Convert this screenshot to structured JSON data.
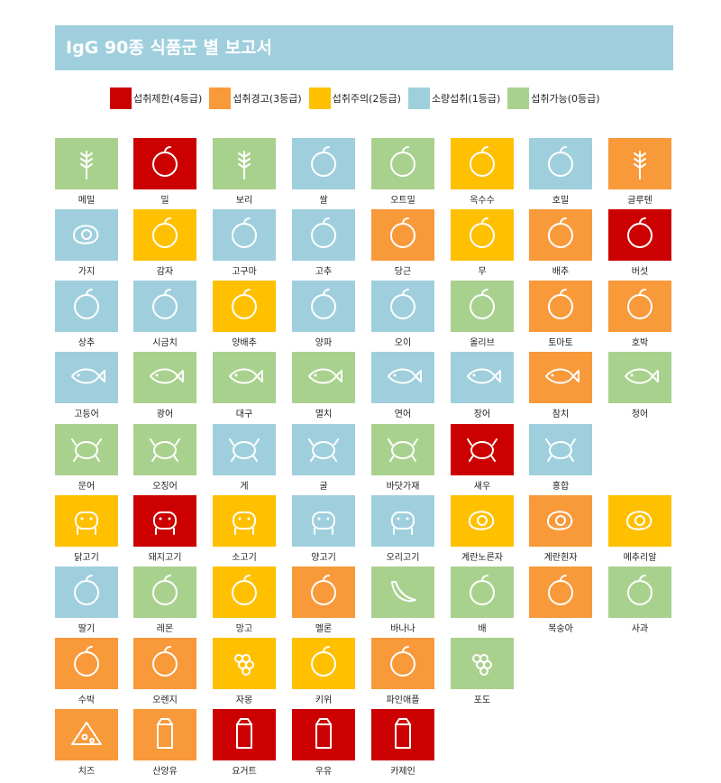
{
  "title": "IgG 90종 식품군 별 보고서",
  "legend": [
    {
      "label": "섭취제한(4등급)",
      "color": "#cc0000"
    },
    {
      "label": "섭취경고(3등급)",
      "color": "#f8993a"
    },
    {
      "label": "섭취주의(2등급)",
      "color": "#ffc000"
    },
    {
      "label": "소량섭취(1등급)",
      "color": "#9fcfdd"
    },
    {
      "label": "섭취가능(0등급)",
      "color": "#a9d18e"
    }
  ],
  "colors": {
    "c4": "#cc0000",
    "c3": "#f8993a",
    "c2": "#ffc000",
    "c1": "#9fcfdd",
    "c0": "#a9d18e"
  },
  "items": [
    [
      {
        "label": "메밀",
        "grade": 0,
        "icon": "wheat-icon"
      },
      {
        "label": "밀",
        "grade": 4,
        "icon": "flour-sack-icon"
      },
      {
        "label": "보리",
        "grade": 0,
        "icon": "barley-icon"
      },
      {
        "label": "쌀",
        "grade": 1,
        "icon": "rice-bowl-icon"
      },
      {
        "label": "오트밀",
        "grade": 0,
        "icon": "oat-grains-icon"
      },
      {
        "label": "옥수수",
        "grade": 2,
        "icon": "corn-icon"
      },
      {
        "label": "호밀",
        "grade": 1,
        "icon": "bread-loaf-icon"
      },
      {
        "label": "글루텐",
        "grade": 3,
        "icon": "wheat-bundle-icon"
      }
    ],
    [
      {
        "label": "가지",
        "grade": 1,
        "icon": "eggplant-icon"
      },
      {
        "label": "감자",
        "grade": 2,
        "icon": "potato-icon"
      },
      {
        "label": "고구마",
        "grade": 1,
        "icon": "sweet-potato-icon"
      },
      {
        "label": "고추",
        "grade": 1,
        "icon": "chili-pepper-icon"
      },
      {
        "label": "당근",
        "grade": 3,
        "icon": "carrot-icon"
      },
      {
        "label": "무",
        "grade": 2,
        "icon": "radish-icon"
      },
      {
        "label": "배추",
        "grade": 3,
        "icon": "cabbage-icon"
      },
      {
        "label": "버섯",
        "grade": 4,
        "icon": "mushroom-icon"
      }
    ],
    [
      {
        "label": "상추",
        "grade": 1,
        "icon": "lettuce-icon"
      },
      {
        "label": "시금치",
        "grade": 1,
        "icon": "spinach-icon"
      },
      {
        "label": "양배추",
        "grade": 2,
        "icon": "cabbage-head-icon"
      },
      {
        "label": "양파",
        "grade": 1,
        "icon": "onion-icon"
      },
      {
        "label": "오이",
        "grade": 1,
        "icon": "cucumber-icon"
      },
      {
        "label": "올리브",
        "grade": 0,
        "icon": "olive-icon"
      },
      {
        "label": "토마토",
        "grade": 3,
        "icon": "tomato-icon"
      },
      {
        "label": "호박",
        "grade": 3,
        "icon": "pumpkin-icon"
      }
    ],
    [
      {
        "label": "고등어",
        "grade": 1,
        "icon": "mackerel-icon"
      },
      {
        "label": "광어",
        "grade": 0,
        "icon": "flatfish-icon"
      },
      {
        "label": "대구",
        "grade": 0,
        "icon": "cod-icon"
      },
      {
        "label": "멸치",
        "grade": 0,
        "icon": "anchovy-icon"
      },
      {
        "label": "연어",
        "grade": 1,
        "icon": "salmon-icon"
      },
      {
        "label": "장어",
        "grade": 1,
        "icon": "eel-icon"
      },
      {
        "label": "참치",
        "grade": 3,
        "icon": "tuna-icon"
      },
      {
        "label": "청어",
        "grade": 0,
        "icon": "herring-icon"
      }
    ],
    [
      {
        "label": "문어",
        "grade": 0,
        "icon": "octopus-icon"
      },
      {
        "label": "오징어",
        "grade": 0,
        "icon": "squid-icon"
      },
      {
        "label": "게",
        "grade": 1,
        "icon": "crab-icon"
      },
      {
        "label": "굴",
        "grade": 1,
        "icon": "oyster-icon"
      },
      {
        "label": "바닷가재",
        "grade": 0,
        "icon": "lobster-icon"
      },
      {
        "label": "새우",
        "grade": 4,
        "icon": "shrimp-icon"
      },
      {
        "label": "홍합",
        "grade": 1,
        "icon": "mussel-icon"
      }
    ],
    [
      {
        "label": "닭고기",
        "grade": 2,
        "icon": "chicken-icon"
      },
      {
        "label": "돼지고기",
        "grade": 4,
        "icon": "pig-icon"
      },
      {
        "label": "소고기",
        "grade": 2,
        "icon": "cow-icon"
      },
      {
        "label": "양고기",
        "grade": 1,
        "icon": "sheep-icon"
      },
      {
        "label": "오리고기",
        "grade": 1,
        "icon": "duck-icon"
      },
      {
        "label": "계란노른자",
        "grade": 2,
        "icon": "egg-yolk-icon"
      },
      {
        "label": "계란흰자",
        "grade": 3,
        "icon": "fried-egg-icon"
      },
      {
        "label": "메추리알",
        "grade": 2,
        "icon": "quail-eggs-icon"
      }
    ],
    [
      {
        "label": "딸기",
        "grade": 1,
        "icon": "strawberry-icon"
      },
      {
        "label": "레몬",
        "grade": 0,
        "icon": "lemon-icon"
      },
      {
        "label": "망고",
        "grade": 2,
        "icon": "mango-icon"
      },
      {
        "label": "멜론",
        "grade": 3,
        "icon": "melon-icon"
      },
      {
        "label": "바나나",
        "grade": 0,
        "icon": "banana-icon"
      },
      {
        "label": "배",
        "grade": 0,
        "icon": "pear-icon"
      },
      {
        "label": "복숭아",
        "grade": 3,
        "icon": "peach-icon"
      },
      {
        "label": "사과",
        "grade": 0,
        "icon": "apple-icon"
      }
    ],
    [
      {
        "label": "수박",
        "grade": 3,
        "icon": "watermelon-icon"
      },
      {
        "label": "오렌지",
        "grade": 3,
        "icon": "orange-icon"
      },
      {
        "label": "자몽",
        "grade": 2,
        "icon": "grapefruit-icon"
      },
      {
        "label": "키위",
        "grade": 2,
        "icon": "kiwi-icon"
      },
      {
        "label": "파인애플",
        "grade": 3,
        "icon": "pineapple-icon"
      },
      {
        "label": "포도",
        "grade": 0,
        "icon": "grapes-icon"
      }
    ],
    [
      {
        "label": "치즈",
        "grade": 3,
        "icon": "cheese-icon"
      },
      {
        "label": "산양유",
        "grade": 3,
        "icon": "milk-bottle-icon"
      },
      {
        "label": "요거트",
        "grade": 4,
        "icon": "yogurt-cup-icon"
      },
      {
        "label": "우유",
        "grade": 4,
        "icon": "milk-carton-icon"
      },
      {
        "label": "카제인",
        "grade": 4,
        "icon": "casein-carton-icon"
      }
    ]
  ]
}
